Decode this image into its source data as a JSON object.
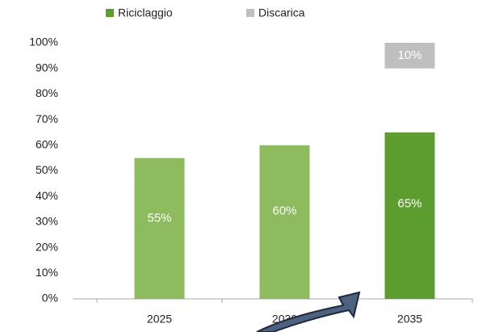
{
  "chart_data": {
    "type": "bar",
    "categories": [
      "2025",
      "2030",
      "2035"
    ],
    "series": [
      {
        "name": "Riciclaggio",
        "color": "#5d9c2e",
        "colors": [
          "#8dbb5e",
          "#8dbb5e",
          "#5d9c2e"
        ],
        "values": [
          55,
          60,
          65
        ],
        "value_labels": [
          "55%",
          "60%",
          "65%"
        ]
      },
      {
        "name": "Discarica",
        "color": "#bfbfbf",
        "values": [
          null,
          null,
          10
        ],
        "value_labels": [
          null,
          null,
          "10%"
        ]
      }
    ],
    "ylim": [
      0,
      100
    ],
    "yticks": [
      {
        "value": 0,
        "label": "0%"
      },
      {
        "value": 10,
        "label": "10%"
      },
      {
        "value": 20,
        "label": "20%"
      },
      {
        "value": 30,
        "label": "30%"
      },
      {
        "value": 40,
        "label": "40%"
      },
      {
        "value": 50,
        "label": "50%"
      },
      {
        "value": 60,
        "label": "60%"
      },
      {
        "value": 70,
        "label": "70%"
      },
      {
        "value": 80,
        "label": "80%"
      },
      {
        "value": 90,
        "label": "90%"
      },
      {
        "value": 100,
        "label": "100%"
      }
    ],
    "legend": "top"
  }
}
